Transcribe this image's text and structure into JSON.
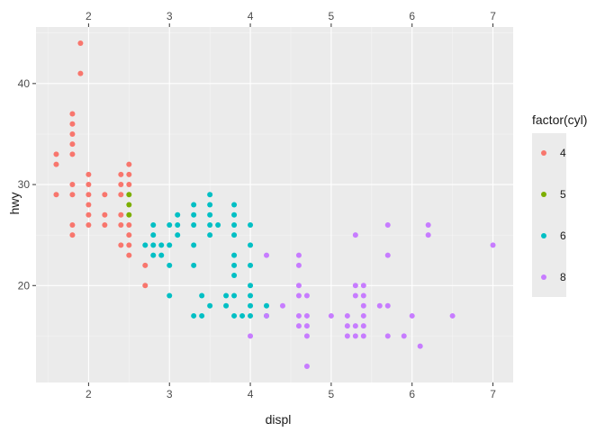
{
  "chart_data": {
    "type": "scatter",
    "xlabel": "displ",
    "ylabel": "hwy",
    "xlim": [
      1.35,
      7.25
    ],
    "ylim": [
      10.4,
      45.6
    ],
    "x_ticks": [
      2,
      3,
      4,
      5,
      6,
      7
    ],
    "x_tick_labels": [
      "2",
      "3",
      "4",
      "5",
      "6",
      "7"
    ],
    "x_ticks_top": [
      2,
      3,
      4,
      5,
      6,
      7
    ],
    "x_tick_labels_top": [
      "2",
      "3",
      "4",
      "5",
      "6",
      "7"
    ],
    "y_ticks": [
      20,
      30,
      40
    ],
    "y_tick_labels": [
      "20",
      "30",
      "40"
    ],
    "grid": true,
    "legend_position": "right",
    "legend": {
      "title": "factor(cyl)",
      "entries": [
        {
          "label": "4",
          "color": "#F8766D"
        },
        {
          "label": "5",
          "color": "#7CAE00"
        },
        {
          "label": "6",
          "color": "#00BFC4"
        },
        {
          "label": "8",
          "color": "#C77CFF"
        }
      ]
    },
    "series": [
      {
        "key": "4",
        "color": "#F8766D",
        "points": [
          [
            1.6,
            33
          ],
          [
            1.6,
            32
          ],
          [
            1.6,
            29
          ],
          [
            1.8,
            37
          ],
          [
            1.8,
            36
          ],
          [
            1.8,
            35
          ],
          [
            1.8,
            34
          ],
          [
            1.8,
            33
          ],
          [
            1.8,
            30
          ],
          [
            1.8,
            29
          ],
          [
            1.8,
            26
          ],
          [
            1.8,
            25
          ],
          [
            1.9,
            44
          ],
          [
            1.9,
            41
          ],
          [
            2.0,
            31
          ],
          [
            2.0,
            30
          ],
          [
            2.0,
            29
          ],
          [
            2.0,
            28
          ],
          [
            2.0,
            27
          ],
          [
            2.0,
            26
          ],
          [
            2.2,
            29
          ],
          [
            2.2,
            27
          ],
          [
            2.2,
            26
          ],
          [
            2.4,
            31
          ],
          [
            2.4,
            30
          ],
          [
            2.4,
            29
          ],
          [
            2.4,
            27
          ],
          [
            2.4,
            26
          ],
          [
            2.4,
            24
          ],
          [
            2.5,
            32
          ],
          [
            2.5,
            31
          ],
          [
            2.5,
            30
          ],
          [
            2.5,
            26
          ],
          [
            2.5,
            25
          ],
          [
            2.5,
            24
          ],
          [
            2.5,
            23
          ],
          [
            2.7,
            20
          ],
          [
            2.7,
            22
          ]
        ]
      },
      {
        "key": "5",
        "color": "#7CAE00",
        "points": [
          [
            2.5,
            29
          ],
          [
            2.5,
            28
          ],
          [
            2.5,
            27
          ]
        ]
      },
      {
        "key": "6",
        "color": "#00BFC4",
        "points": [
          [
            2.7,
            24
          ],
          [
            2.8,
            26
          ],
          [
            2.8,
            25
          ],
          [
            2.8,
            24
          ],
          [
            2.8,
            23
          ],
          [
            2.9,
            23
          ],
          [
            2.9,
            24
          ],
          [
            3.0,
            26
          ],
          [
            3.0,
            24
          ],
          [
            3.0,
            22
          ],
          [
            3.0,
            19
          ],
          [
            3.1,
            27
          ],
          [
            3.1,
            26
          ],
          [
            3.1,
            25
          ],
          [
            3.3,
            28
          ],
          [
            3.3,
            27
          ],
          [
            3.3,
            26
          ],
          [
            3.3,
            24
          ],
          [
            3.3,
            22
          ],
          [
            3.3,
            17
          ],
          [
            3.4,
            19
          ],
          [
            3.4,
            17
          ],
          [
            3.5,
            29
          ],
          [
            3.5,
            28
          ],
          [
            3.5,
            27
          ],
          [
            3.5,
            26
          ],
          [
            3.5,
            25
          ],
          [
            3.5,
            18
          ],
          [
            3.6,
            26
          ],
          [
            3.7,
            19
          ],
          [
            3.7,
            18
          ],
          [
            3.8,
            28
          ],
          [
            3.8,
            27
          ],
          [
            3.8,
            26
          ],
          [
            3.8,
            25
          ],
          [
            3.8,
            23
          ],
          [
            3.8,
            22
          ],
          [
            3.8,
            21
          ],
          [
            3.8,
            19
          ],
          [
            3.8,
            17
          ],
          [
            3.9,
            17
          ],
          [
            4.0,
            26
          ],
          [
            4.0,
            24
          ],
          [
            4.0,
            22
          ],
          [
            4.0,
            20
          ],
          [
            4.0,
            19
          ],
          [
            4.0,
            18
          ],
          [
            4.0,
            17
          ],
          [
            4.2,
            18
          ],
          [
            4.2,
            17
          ]
        ]
      },
      {
        "key": "8",
        "color": "#C77CFF",
        "points": [
          [
            4.0,
            15
          ],
          [
            4.2,
            23
          ],
          [
            4.2,
            17
          ],
          [
            4.4,
            18
          ],
          [
            4.6,
            23
          ],
          [
            4.6,
            22
          ],
          [
            4.6,
            20
          ],
          [
            4.6,
            19
          ],
          [
            4.6,
            17
          ],
          [
            4.6,
            16
          ],
          [
            4.7,
            19
          ],
          [
            4.7,
            17
          ],
          [
            4.7,
            16
          ],
          [
            4.7,
            15
          ],
          [
            4.7,
            12
          ],
          [
            5.0,
            17
          ],
          [
            5.2,
            17
          ],
          [
            5.2,
            16
          ],
          [
            5.2,
            15
          ],
          [
            5.3,
            25
          ],
          [
            5.3,
            20
          ],
          [
            5.3,
            19
          ],
          [
            5.3,
            16
          ],
          [
            5.3,
            15
          ],
          [
            5.4,
            20
          ],
          [
            5.4,
            19
          ],
          [
            5.4,
            18
          ],
          [
            5.4,
            17
          ],
          [
            5.4,
            16
          ],
          [
            5.4,
            15
          ],
          [
            5.6,
            18
          ],
          [
            5.7,
            26
          ],
          [
            5.7,
            23
          ],
          [
            5.7,
            18
          ],
          [
            5.7,
            15
          ],
          [
            5.9,
            15
          ],
          [
            6.0,
            17
          ],
          [
            6.1,
            14
          ],
          [
            6.2,
            26
          ],
          [
            6.2,
            25
          ],
          [
            6.5,
            17
          ],
          [
            7.0,
            24
          ]
        ]
      }
    ]
  }
}
